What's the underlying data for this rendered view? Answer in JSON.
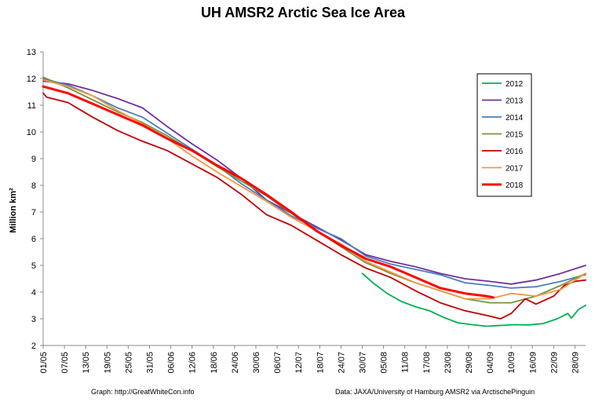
{
  "chart_data": {
    "type": "line",
    "title": "UH AMSR2 Arctic Sea Ice Area",
    "ylabel": "Million km²",
    "ylim": [
      2,
      13
    ],
    "yticks": [
      2,
      3,
      4,
      5,
      6,
      7,
      8,
      9,
      10,
      11,
      12,
      13
    ],
    "xlim": [
      "01/05",
      "01/10"
    ],
    "xticks": [
      "01/05",
      "07/05",
      "13/05",
      "19/05",
      "25/05",
      "31/05",
      "06/06",
      "12/06",
      "18/06",
      "24/06",
      "30/06",
      "06/07",
      "12/07",
      "18/07",
      "24/07",
      "30/07",
      "05/08",
      "11/08",
      "17/08",
      "23/08",
      "29/08",
      "04/09",
      "10/09",
      "16/09",
      "22/09",
      "28/09"
    ],
    "grid": false,
    "legend_position": "top-right",
    "series": [
      {
        "name": "2012",
        "color": "#00b050",
        "x": [
          "30/07",
          "02/08",
          "06/08",
          "10/08",
          "14/08",
          "18/08",
          "22/08",
          "26/08",
          "30/08",
          "03/09",
          "07/09",
          "11/09",
          "15/09",
          "19/09",
          "23/09",
          "26/09",
          "27/09",
          "29/09",
          "01/10"
        ],
        "y": [
          4.7,
          4.35,
          3.95,
          3.65,
          3.45,
          3.3,
          3.05,
          2.85,
          2.78,
          2.72,
          2.75,
          2.78,
          2.77,
          2.82,
          3.0,
          3.2,
          3.02,
          3.35,
          3.5
        ]
      },
      {
        "name": "2013",
        "color": "#7030a0",
        "x": [
          "01/05",
          "08/05",
          "15/05",
          "22/05",
          "29/05",
          "05/06",
          "12/06",
          "19/06",
          "26/06",
          "03/07",
          "10/07",
          "17/07",
          "24/07",
          "31/07",
          "07/08",
          "14/08",
          "21/08",
          "28/08",
          "04/09",
          "10/09",
          "17/09",
          "24/09",
          "01/10"
        ],
        "y": [
          11.9,
          11.8,
          11.55,
          11.25,
          10.9,
          10.2,
          9.55,
          8.95,
          8.25,
          7.45,
          6.95,
          6.45,
          5.95,
          5.4,
          5.15,
          4.95,
          4.7,
          4.5,
          4.4,
          4.3,
          4.45,
          4.7,
          5.0
        ]
      },
      {
        "name": "2014",
        "color": "#4a7ebb",
        "x": [
          "01/05",
          "08/05",
          "15/05",
          "22/05",
          "29/05",
          "05/06",
          "12/06",
          "19/06",
          "26/06",
          "03/07",
          "10/07",
          "17/07",
          "24/07",
          "31/07",
          "07/08",
          "14/08",
          "21/08",
          "28/08",
          "04/09",
          "10/09",
          "17/09",
          "24/09",
          "01/10"
        ],
        "y": [
          12.0,
          11.75,
          11.35,
          10.9,
          10.55,
          9.95,
          9.35,
          8.75,
          8.05,
          7.45,
          6.85,
          6.4,
          6.0,
          5.35,
          5.05,
          4.85,
          4.65,
          4.35,
          4.25,
          4.15,
          4.2,
          4.4,
          4.65
        ]
      },
      {
        "name": "2015",
        "color": "#77933c",
        "x": [
          "01/05",
          "08/05",
          "15/05",
          "22/05",
          "29/05",
          "05/06",
          "12/06",
          "19/06",
          "26/06",
          "03/07",
          "10/07",
          "17/07",
          "24/07",
          "31/07",
          "07/08",
          "14/08",
          "21/08",
          "28/08",
          "04/09",
          "10/09",
          "17/09",
          "24/09",
          "01/10"
        ],
        "y": [
          12.05,
          11.65,
          11.2,
          10.75,
          10.35,
          9.85,
          9.3,
          8.7,
          8.15,
          7.6,
          6.95,
          6.3,
          5.7,
          5.1,
          4.7,
          4.35,
          4.05,
          3.75,
          3.6,
          3.6,
          3.85,
          4.25,
          4.7
        ]
      },
      {
        "name": "2016",
        "color": "#c00000",
        "x": [
          "01/05",
          "02/05",
          "08/05",
          "15/05",
          "22/05",
          "29/05",
          "05/06",
          "12/06",
          "19/06",
          "26/06",
          "03/07",
          "10/07",
          "17/07",
          "24/07",
          "31/07",
          "07/08",
          "14/08",
          "21/08",
          "28/08",
          "04/09",
          "07/09",
          "10/09",
          "14/09",
          "17/09",
          "22/09",
          "25/09",
          "28/09",
          "01/10"
        ],
        "y": [
          11.45,
          11.3,
          11.1,
          10.55,
          10.05,
          9.65,
          9.3,
          8.8,
          8.3,
          7.65,
          6.9,
          6.5,
          5.95,
          5.4,
          4.9,
          4.55,
          4.05,
          3.6,
          3.3,
          3.1,
          3.0,
          3.2,
          3.75,
          3.55,
          3.85,
          4.25,
          4.4,
          4.45
        ]
      },
      {
        "name": "2017",
        "color": "#f79646",
        "x": [
          "01/05",
          "08/05",
          "15/05",
          "22/05",
          "29/05",
          "05/06",
          "12/06",
          "19/06",
          "26/06",
          "03/07",
          "10/07",
          "17/07",
          "24/07",
          "31/07",
          "07/08",
          "14/08",
          "21/08",
          "28/08",
          "04/09",
          "10/09",
          "17/09",
          "24/09",
          "01/10"
        ],
        "y": [
          11.95,
          11.7,
          11.35,
          10.8,
          10.3,
          9.75,
          9.1,
          8.5,
          7.95,
          7.4,
          6.8,
          6.3,
          5.8,
          5.15,
          4.75,
          4.35,
          4.05,
          3.75,
          3.75,
          3.95,
          3.85,
          4.1,
          4.7
        ]
      },
      {
        "name": "2018",
        "color": "#ff0000",
        "x": [
          "01/05",
          "08/05",
          "15/05",
          "22/05",
          "29/05",
          "05/06",
          "12/06",
          "19/06",
          "26/06",
          "03/07",
          "10/07",
          "17/07",
          "24/07",
          "31/07",
          "07/08",
          "14/08",
          "21/08",
          "28/08",
          "03/09",
          "05/09"
        ],
        "y": [
          11.7,
          11.45,
          11.05,
          10.65,
          10.25,
          9.75,
          9.3,
          8.75,
          8.25,
          7.65,
          7.0,
          6.3,
          5.75,
          5.25,
          4.95,
          4.55,
          4.15,
          3.95,
          3.85,
          3.8
        ]
      }
    ]
  },
  "credits": {
    "left": "Graph: http://GreatWhiteCon.info",
    "right": "Data: JAXA/University of Hamburg AMSR2 via  ArctischePinguin"
  }
}
